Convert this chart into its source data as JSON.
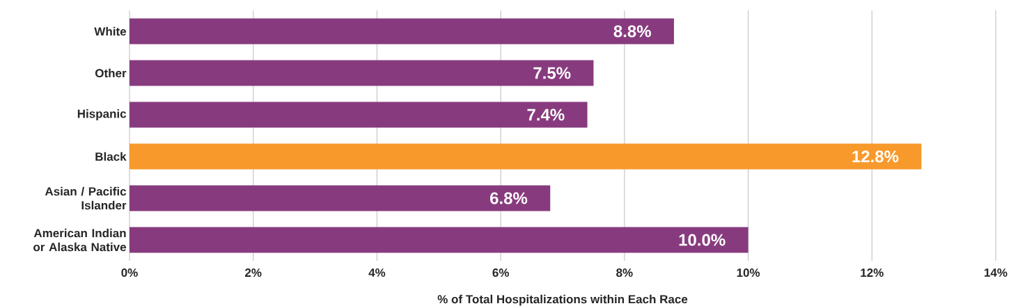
{
  "chart_data": {
    "type": "bar",
    "orientation": "horizontal",
    "xlabel": "% of Total Hospitalizations within Each Race",
    "categories": [
      "White",
      "Other",
      "Hispanic",
      "Black",
      "Asian / Pacific Islander",
      "American Indian or Alaska Native"
    ],
    "values": [
      8.8,
      7.5,
      7.4,
      12.8,
      6.8,
      10.0
    ],
    "value_labels": [
      "8.8%",
      "7.5%",
      "7.4%",
      "12.8%",
      "6.8%",
      "10.0%"
    ],
    "colors": [
      "#873b7e",
      "#873b7e",
      "#873b7e",
      "#f7992b",
      "#873b7e",
      "#873b7e"
    ],
    "xlim": [
      0,
      14
    ],
    "xticks": [
      {
        "value": 0,
        "label": "0%"
      },
      {
        "value": 2,
        "label": "2%"
      },
      {
        "value": 4,
        "label": "4%"
      },
      {
        "value": 6,
        "label": "6%"
      },
      {
        "value": 8,
        "label": "8%"
      },
      {
        "value": 10,
        "label": "10%"
      },
      {
        "value": 12,
        "label": "12%"
      },
      {
        "value": 14,
        "label": "14%"
      }
    ],
    "grid": "x"
  }
}
